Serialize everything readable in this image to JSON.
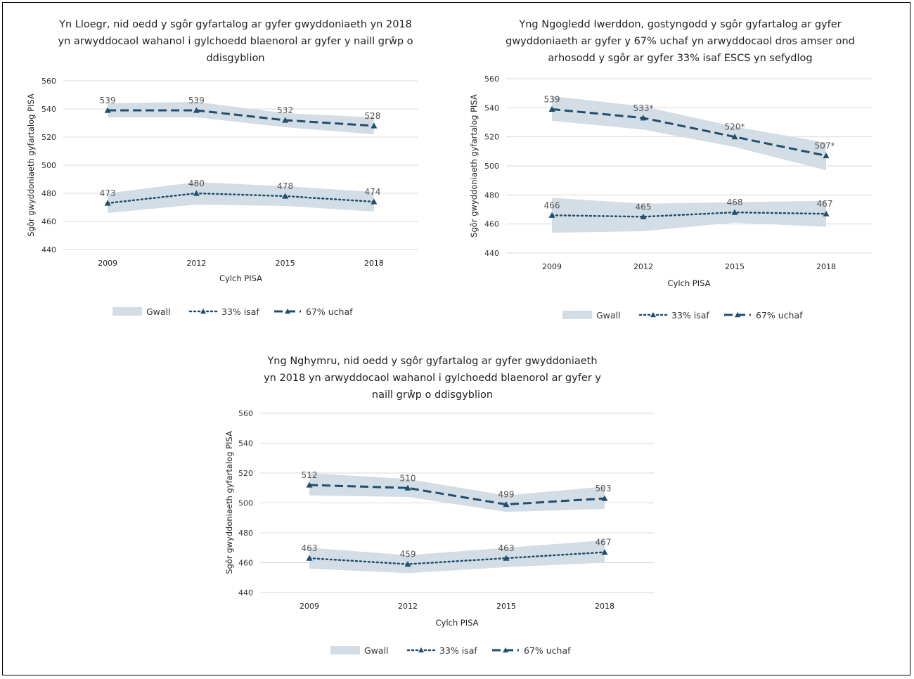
{
  "chart_data": [
    {
      "type": "line",
      "title": "Yn Lloegr, nid oedd y sgôr gyfartalog ar gyfer gwyddoniaeth yn 2018 yn arwyddocaol wahanol i gylchoedd blaenorol ar gyfer y naill grŵp o ddisgyblion",
      "xlabel": "Cylch PISA",
      "ylabel": "Sgôr gwyddoniaeth gyfartalog PISA",
      "ylim": [
        440,
        560
      ],
      "yticks": [
        440,
        460,
        480,
        500,
        520,
        540,
        560
      ],
      "categories": [
        "2009",
        "2012",
        "2015",
        "2018"
      ],
      "series": [
        {
          "name": "67% uchaf",
          "values": [
            539,
            539,
            532,
            528
          ],
          "labels": [
            "539",
            "539",
            "532",
            "528"
          ],
          "error_band": [
            [
              534,
              544
            ],
            [
              534,
              545
            ],
            [
              527,
              537
            ],
            [
              522,
              534
            ]
          ]
        },
        {
          "name": "33% isaf",
          "values": [
            473,
            480,
            478,
            474
          ],
          "labels": [
            "473",
            "480",
            "478",
            "474"
          ],
          "error_band": [
            [
              466,
              480
            ],
            [
              472,
              488
            ],
            [
              471,
              485
            ],
            [
              467,
              481
            ]
          ]
        }
      ],
      "legend": [
        "Gwall",
        "33% isaf",
        "67% uchaf"
      ],
      "legend_position": "bottom"
    },
    {
      "type": "line",
      "title": "Yng Ngogledd Iwerddon, gostyngodd y sgôr gyfartalog ar gyfer gwyddoniaeth ar gyfer y 67% uchaf yn arwyddocaol dros amser ond arhosodd y sgôr ar gyfer 33% isaf ESCS yn sefydlog",
      "xlabel": "Cylch PISA",
      "ylabel": "Sgôr gwyddoniaeth gyfartalog PISA",
      "ylim": [
        440,
        560
      ],
      "yticks": [
        440,
        460,
        480,
        500,
        520,
        540,
        560
      ],
      "categories": [
        "2009",
        "2012",
        "2015",
        "2018"
      ],
      "series": [
        {
          "name": "67% uchaf",
          "values": [
            539,
            533,
            520,
            507
          ],
          "labels": [
            "539",
            "533*",
            "520*",
            "507*"
          ],
          "error_band": [
            [
              531,
              548
            ],
            [
              525,
              541
            ],
            [
              513,
              527
            ],
            [
              497,
              516
            ]
          ]
        },
        {
          "name": "33% isaf",
          "values": [
            466,
            465,
            468,
            467
          ],
          "labels": [
            "466",
            "465",
            "468",
            "467"
          ],
          "error_band": [
            [
              454,
              478
            ],
            [
              455,
              474
            ],
            [
              461,
              475
            ],
            [
              458,
              476
            ]
          ]
        }
      ],
      "legend": [
        "Gwall",
        "33% isaf",
        "67% uchaf"
      ],
      "legend_position": "bottom"
    },
    {
      "type": "line",
      "title": "Yng Nghymru, nid oedd y sgôr gyfartalog ar gyfer gwyddoniaeth yn 2018 yn arwyddocaol wahanol i gylchoedd blaenorol ar gyfer y naill grŵp o ddisgyblion",
      "xlabel": "Cylch PISA",
      "ylabel": "Sgôr gwyddoniaeth gyfartalog PISA",
      "ylim": [
        440,
        560
      ],
      "yticks": [
        440,
        460,
        480,
        500,
        520,
        540,
        560
      ],
      "categories": [
        "2009",
        "2012",
        "2015",
        "2018"
      ],
      "series": [
        {
          "name": "67% uchaf",
          "values": [
            512,
            510,
            499,
            503
          ],
          "labels": [
            "512",
            "510",
            "499",
            "503"
          ],
          "error_band": [
            [
              505,
              520
            ],
            [
              504,
              516
            ],
            [
              494,
              505
            ],
            [
              496,
              511
            ]
          ]
        },
        {
          "name": "33% isaf",
          "values": [
            463,
            459,
            463,
            467
          ],
          "labels": [
            "463",
            "459",
            "463",
            "467"
          ],
          "error_band": [
            [
              456,
              470
            ],
            [
              453,
              465
            ],
            [
              457,
              470
            ],
            [
              460,
              475
            ]
          ]
        }
      ],
      "legend": [
        "Gwall",
        "33% isaf",
        "67% uchaf"
      ],
      "legend_position": "bottom"
    }
  ],
  "colors": {
    "line": "#1f4e6e",
    "band": "#d3dde5",
    "grid": "#d9d9d9"
  }
}
